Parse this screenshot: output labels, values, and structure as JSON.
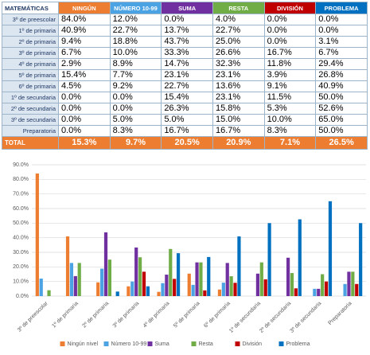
{
  "table": {
    "header": [
      "MATEMÁTICAS",
      "NINGÚN",
      "NÚMERO 10-99",
      "SUMA",
      "RESTA",
      "DIVISIÓN",
      "PROBLEMA"
    ],
    "rows": [
      [
        "3º de preescolar",
        "84.0%",
        "12.0%",
        "0.0%",
        "4.0%",
        "0.0%",
        "0.0%"
      ],
      [
        "1º de primaria",
        "40.9%",
        "22.7%",
        "13.7%",
        "22.7%",
        "0.0%",
        "0.0%"
      ],
      [
        "2º de primaria",
        "9.4%",
        "18.8%",
        "43.7%",
        "25.0%",
        "0.0%",
        "3.1%"
      ],
      [
        "3º de primaria",
        "6.7%",
        "10.0%",
        "33.3%",
        "26.6%",
        "16.7%",
        "6.7%"
      ],
      [
        "4º de primaria",
        "2.9%",
        "8.9%",
        "14.7%",
        "32.3%",
        "11.8%",
        "29.4%"
      ],
      [
        "5º de primaria",
        "15.4%",
        "7.7%",
        "23.1%",
        "23.1%",
        "3.9%",
        "26.8%"
      ],
      [
        "6º de primaria",
        "4.5%",
        "9.2%",
        "22.7%",
        "13.6%",
        "9.1%",
        "40.9%"
      ],
      [
        "1º de secundaria",
        "0.0%",
        "0.0%",
        "15.4%",
        "23.1%",
        "11.5%",
        "50.0%"
      ],
      [
        "2º de secundaria",
        "0.0%",
        "0.0%",
        "26.3%",
        "15.8%",
        "5.3%",
        "52.6%"
      ],
      [
        "3º de secundaria",
        "0.0%",
        "5.0%",
        "5.0%",
        "15.0%",
        "10.0%",
        "65.0%"
      ],
      [
        "Preparatoria",
        "0.0%",
        "8.3%",
        "16.7%",
        "16.7%",
        "8.3%",
        "50.0%"
      ]
    ],
    "total": [
      "TOTAL",
      "15.3%",
      "9.7%",
      "20.5%",
      "20.9%",
      "7.1%",
      "26.5%"
    ]
  },
  "chart_data": {
    "type": "bar",
    "categories": [
      "3º de preescolar",
      "1º de primaria",
      "2º de primaria",
      "3º de primaria",
      "4º de primaria",
      "5º de primaria",
      "6º de primaria",
      "1º de secundaria",
      "2º de secundaria",
      "3º de secundaria",
      "Preparatoria"
    ],
    "series": [
      {
        "name": "Ningún nivel",
        "color": "#ed7d31",
        "values": [
          84.0,
          40.9,
          9.4,
          6.7,
          2.9,
          15.4,
          4.5,
          0.0,
          0.0,
          0.0,
          0.0
        ]
      },
      {
        "name": "Número 10-99",
        "color": "#4ba3e3",
        "values": [
          12.0,
          22.7,
          18.8,
          10.0,
          8.9,
          7.7,
          9.2,
          0.0,
          0.0,
          5.0,
          8.3
        ]
      },
      {
        "name": "Suma",
        "color": "#7030a0",
        "values": [
          0.0,
          13.7,
          43.7,
          33.3,
          14.7,
          23.1,
          22.7,
          15.4,
          26.3,
          5.0,
          16.7
        ]
      },
      {
        "name": "Resta",
        "color": "#70ad47",
        "values": [
          4.0,
          22.7,
          25.0,
          26.6,
          32.3,
          23.1,
          13.6,
          23.1,
          15.8,
          15.0,
          16.7
        ]
      },
      {
        "name": "División",
        "color": "#c00000",
        "values": [
          0.0,
          0.0,
          0.0,
          16.7,
          11.8,
          3.9,
          9.1,
          11.5,
          5.3,
          10.0,
          8.3
        ]
      },
      {
        "name": "Problema",
        "color": "#0070c0",
        "values": [
          0.0,
          0.0,
          3.1,
          6.7,
          29.4,
          26.8,
          40.9,
          50.0,
          52.6,
          65.0,
          50.0
        ]
      }
    ],
    "ylim": [
      0,
      90
    ],
    "yticks": [
      {
        "value": 0,
        "label": "0.0%"
      },
      {
        "value": 10,
        "label": "10.0%"
      },
      {
        "value": 20,
        "label": "20.0%"
      },
      {
        "value": 30,
        "label": "30.0%"
      },
      {
        "value": 40,
        "label": "40.0%"
      },
      {
        "value": 50,
        "label": "50.0%"
      },
      {
        "value": 60,
        "label": "60.0%"
      },
      {
        "value": 70,
        "label": "70.0%"
      },
      {
        "value": 80,
        "label": "80.0%"
      },
      {
        "value": 90,
        "label": "90.0%"
      }
    ],
    "grid": true,
    "legend": "bottom"
  }
}
